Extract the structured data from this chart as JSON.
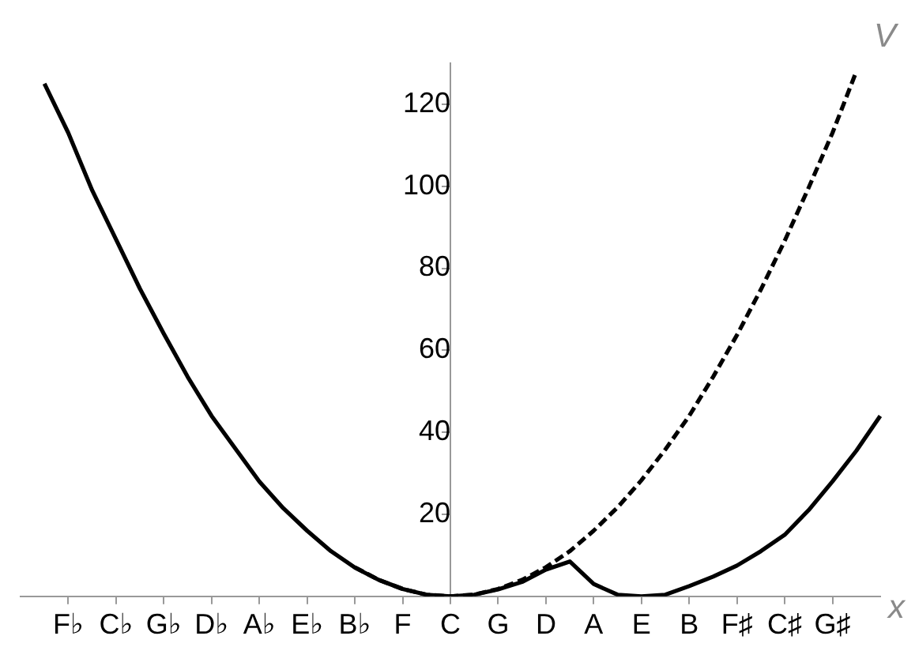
{
  "chart_data": {
    "type": "line",
    "xlabel": "x",
    "ylabel": "V",
    "ylim": [
      0,
      130
    ],
    "categories": [
      null,
      null,
      "F♭",
      null,
      "C♭",
      null,
      "G♭",
      null,
      "D♭",
      null,
      "A♭",
      null,
      "E♭",
      null,
      "B♭",
      null,
      "F",
      null,
      "C",
      null,
      "G",
      null,
      "D",
      null,
      "A",
      null,
      "E",
      null,
      "B",
      null,
      "F♯",
      null,
      "C♯",
      null,
      "G♯",
      null,
      null
    ],
    "yticks": [
      20,
      40,
      60,
      80,
      100,
      120
    ],
    "grid": false,
    "legend": false,
    "marker": "none",
    "series": [
      {
        "color": "#000000",
        "line_style": "solid",
        "values": [
          null,
          125,
          113,
          99,
          87,
          75,
          64,
          53.5,
          44,
          36,
          28,
          21.5,
          16,
          11,
          7,
          4,
          1.8,
          0.4,
          0,
          0.4,
          1.7,
          3.5,
          6.5,
          8.5,
          3,
          0.4,
          0,
          0.4,
          2.5,
          4.8,
          7.5,
          11,
          15,
          21,
          28,
          35.5,
          44
        ]
      },
      {
        "color": "#000000",
        "line_style": "dashed",
        "values": [
          null,
          null,
          null,
          null,
          null,
          null,
          null,
          null,
          null,
          null,
          null,
          null,
          null,
          null,
          7.1,
          4,
          1.8,
          0.4,
          0,
          0.4,
          1.8,
          4,
          7.1,
          11,
          16,
          21.7,
          28.3,
          35.8,
          44,
          53.5,
          63.7,
          74.8,
          86.7,
          99.6,
          113,
          128,
          null
        ]
      }
    ]
  }
}
